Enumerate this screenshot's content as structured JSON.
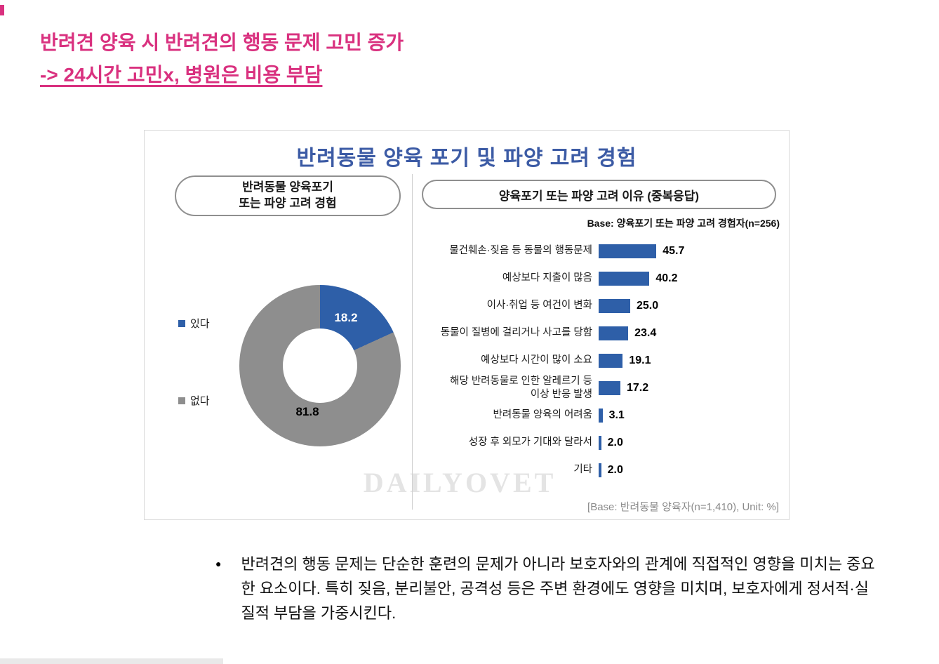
{
  "heading": {
    "line1": "반려견 양육 시 반려견의 행동 문제 고민 증가",
    "line2": "-> 24시간 고민x, 병원은 비용 부담"
  },
  "chart": {
    "title": "반려동물 양육 포기 및 파양 고려 경험",
    "watermark": "DAILYOVET",
    "footer": "[Base:  반려동물 양육자(n=1,410),  Unit:  %]",
    "donut": {
      "header_line1": "반려동물 양육포기",
      "header_line2": "또는 파양 고려 경험",
      "legend": [
        {
          "label": "있다",
          "color": "#2e5fa8"
        },
        {
          "label": "없다",
          "color": "#8e8e8e"
        }
      ],
      "value_yes": "18.2",
      "value_no": "81.8"
    },
    "bars": {
      "header": "양육포기 또는 파양 고려 이유 (중복응답)",
      "base_note": "Base: 양육포기 또는 파양 고려 경험자(n=256)",
      "items": [
        {
          "label": "물건훼손·짖음 등 동물의 행동문제",
          "value": 45.7
        },
        {
          "label": "예상보다 지출이 많음",
          "value": 40.2
        },
        {
          "label": "이사·취업 등 여건이 변화",
          "value": 25.0
        },
        {
          "label": "동물이 질병에 걸리거나 사고를 당함",
          "value": 23.4
        },
        {
          "label": "예상보다 시간이 많이 소요",
          "value": 19.1
        },
        {
          "label": "해당 반려동물로 인한 알레르기 등\n이상 반응 발생",
          "value": 17.2
        },
        {
          "label": "반려동물 양육의 어려움",
          "value": 3.1
        },
        {
          "label": "성장 후 외모가 기대와 달라서",
          "value": 2.0
        },
        {
          "label": "기타",
          "value": 2.0
        }
      ]
    }
  },
  "chart_data": [
    {
      "type": "pie",
      "style": "donut",
      "title": "반려동물 양육포기 또는 파양 고려 경험",
      "labels": [
        "있다",
        "없다"
      ],
      "values": [
        18.2,
        81.8
      ],
      "unit": "%",
      "colors": [
        "#2e5fa8",
        "#8e8e8e"
      ],
      "legend_position": "left"
    },
    {
      "type": "bar",
      "orientation": "horizontal",
      "title": "양육포기 또는 파양 고려 이유 (중복응답)",
      "base": "Base: 양육포기 또는 파양 고려 경험자(n=256)",
      "categories": [
        "물건훼손·짖음 등 동물의 행동문제",
        "예상보다 지출이 많음",
        "이사·취업 등 여건이 변화",
        "동물이 질병에 걸리거나 사고를 당함",
        "예상보다 시간이 많이 소요",
        "해당 반려동물로 인한 알레르기 등 이상 반응 발생",
        "반려동물 양육의 어려움",
        "성장 후 외모가 기대와 달라서",
        "기타"
      ],
      "values": [
        45.7,
        40.2,
        25.0,
        23.4,
        19.1,
        17.2,
        3.1,
        2.0,
        2.0
      ],
      "unit": "%",
      "xlim": [
        0,
        50
      ],
      "grid": false,
      "bar_color": "#2e5fa8"
    }
  ],
  "bullet": {
    "marker": "●",
    "text": "반려견의 행동 문제는 단순한 훈련의 문제가 아니라 보호자와의 관계에 직접적인 영향을 미치는 중요한 요소이다. 특히 짖음, 분리불안, 공격성 등은 주변 환경에도 영향을 미치며, 보호자에게 정서적·실질적 부담을 가중시킨다."
  },
  "colors": {
    "heading_pink": "#d9317f",
    "chart_title_blue": "#3c5ba5",
    "bar_blue": "#2e5fa8",
    "donut_blue": "#2e5fa8",
    "donut_gray": "#8e8e8e"
  }
}
